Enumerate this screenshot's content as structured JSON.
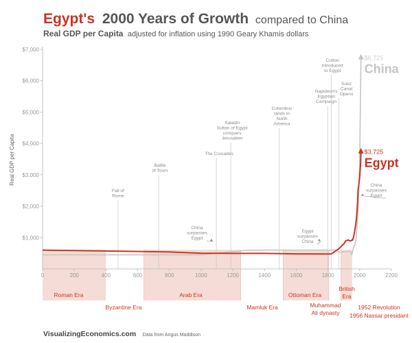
{
  "title": {
    "part1": "Egypt's",
    "part2": "2000 Years of Growth",
    "part3": "compared to China"
  },
  "subtitle": {
    "part1": "Real GDP per Capita",
    "part2": "adjusted for inflation using 1990 Geary Khamis dollars"
  },
  "footer": {
    "brand": "VisualizingEconomics.com",
    "source": "Data from Angus Maddison"
  },
  "colors": {
    "egypt": "#c8341f",
    "china": "#c4c4c4",
    "era_band": "#f6dcd6",
    "axis": "#b3b3b3",
    "annotation_line": "#bdbdbd"
  },
  "chart_data": {
    "type": "line",
    "title": "Egypt's 2000 Years of Growth compared to China",
    "subtitle": "Real GDP per Capita adjusted for inflation using 1990 Geary Khamis dollars",
    "xlabel": "",
    "ylabel": "Real GDP per Capita",
    "xlim": [
      0,
      2200
    ],
    "ylim": [
      0,
      7000
    ],
    "x_ticks": [
      0,
      200,
      400,
      600,
      800,
      1000,
      1200,
      1400,
      1600,
      1800,
      2000,
      2200
    ],
    "x_tick_labels": [
      "0",
      "200",
      "400",
      "600",
      "800",
      "1000",
      "1200",
      "1400",
      "1600",
      "1800",
      "2000",
      "2200"
    ],
    "y_ticks": [
      1000,
      2000,
      3000,
      4000,
      5000,
      6000,
      7000
    ],
    "y_tick_labels": [
      "$1,000",
      "$2,000",
      "$3,000",
      "$4,000",
      "$5,000",
      "$6,000",
      "$7,000"
    ],
    "grid": false,
    "legend": "none",
    "series": [
      {
        "name": "China",
        "end_label": "China",
        "end_value_label": "$6,725",
        "points": [
          [
            0,
            450
          ],
          [
            1000,
            450
          ],
          [
            1300,
            600
          ],
          [
            1500,
            600
          ],
          [
            1700,
            600
          ],
          [
            1820,
            600
          ],
          [
            1850,
            600
          ],
          [
            1870,
            530
          ],
          [
            1890,
            540
          ],
          [
            1913,
            552
          ],
          [
            1929,
            562
          ],
          [
            1940,
            560
          ],
          [
            1950,
            448
          ],
          [
            1960,
            662
          ],
          [
            1970,
            778
          ],
          [
            1978,
            978
          ],
          [
            1985,
            1522
          ],
          [
            1990,
            1871
          ],
          [
            1995,
            2653
          ],
          [
            2000,
            3421
          ],
          [
            2005,
            5500
          ],
          [
            2008,
            6725
          ]
        ]
      },
      {
        "name": "Egypt",
        "end_label": "Egypt",
        "end_value_label": "$3,725",
        "points": [
          [
            0,
            600
          ],
          [
            400,
            570
          ],
          [
            800,
            540
          ],
          [
            1000,
            500
          ],
          [
            1200,
            495
          ],
          [
            1400,
            495
          ],
          [
            1600,
            480
          ],
          [
            1800,
            475
          ],
          [
            1820,
            475
          ],
          [
            1870,
            649
          ],
          [
            1900,
            800
          ],
          [
            1913,
            902
          ],
          [
            1929,
            920
          ],
          [
            1940,
            890
          ],
          [
            1950,
            910
          ],
          [
            1952,
            930
          ],
          [
            1956,
            920
          ],
          [
            1960,
            991
          ],
          [
            1965,
            1100
          ],
          [
            1970,
            1254
          ],
          [
            1975,
            1400
          ],
          [
            1980,
            1645
          ],
          [
            1985,
            2000
          ],
          [
            1990,
            2522
          ],
          [
            1995,
            2700
          ],
          [
            2000,
            2936
          ],
          [
            2005,
            3300
          ],
          [
            2008,
            3725
          ]
        ]
      }
    ],
    "annotations": [
      {
        "lines": [
          "Fall of",
          "Rome"
        ],
        "x": 476,
        "y": 2300
      },
      {
        "lines": [
          "Battle",
          "of Tours"
        ],
        "x": 732,
        "y": 3200
      },
      {
        "lines": [
          "The Crusades"
        ],
        "x": 1096,
        "y": 3800
      },
      {
        "lines": [
          "Saladin",
          "Sultan of Egypt",
          "conquers",
          "Jerusalem"
        ],
        "x": 1187,
        "y": 4500
      },
      {
        "lines": [
          "Columbus",
          "lands in",
          "North",
          "America"
        ],
        "x": 1492,
        "y": 4600
      },
      {
        "lines": [
          "Napoleon's",
          "Egyptian",
          "Campaign"
        ],
        "x": 1798,
        "y": 5400
      },
      {
        "lines": [
          "Cotton",
          "introduced",
          "to Egypt"
        ],
        "x": 1820,
        "y": 6300
      },
      {
        "lines": [
          "Suez",
          "Canal",
          "Opens"
        ],
        "x": 1869,
        "y": 5300
      },
      {
        "lines": [
          "China",
          "surpasses",
          "Egypt"
        ],
        "x": 1100,
        "y": 510,
        "pointer": true
      },
      {
        "lines": [
          "Egypt",
          "surpasses",
          "China"
        ],
        "x": 1850,
        "y": 600,
        "pointer": true
      },
      {
        "lines": [
          "China",
          "surpasses",
          "Egypt"
        ],
        "x": 2000,
        "y": 2500,
        "pointer": true
      }
    ],
    "eras": [
      {
        "name": "Roman Era",
        "start": 0,
        "end": 395
      },
      {
        "name": "Byzantine Era",
        "start": 395,
        "end": 639
      },
      {
        "name": "Arab Era",
        "start": 639,
        "end": 1250
      },
      {
        "name": "Mamluk Era",
        "start": 1250,
        "end": 1517
      },
      {
        "name": "Ottoman Era",
        "start": 1517,
        "end": 1805
      },
      {
        "name": "Muhammad Ali dynasty",
        "lines": [
          "Muhammad",
          "Ali dynasty"
        ],
        "start": 1805,
        "end": 1882
      },
      {
        "name": "British Era",
        "lines": [
          "British",
          "Era"
        ],
        "start": 1882,
        "end": 1952
      },
      {
        "name": "1952 Revolution",
        "start": 1952,
        "end": 1952
      },
      {
        "name": "1956 Nassar presidant",
        "start": 1956,
        "end": 1956
      }
    ]
  }
}
